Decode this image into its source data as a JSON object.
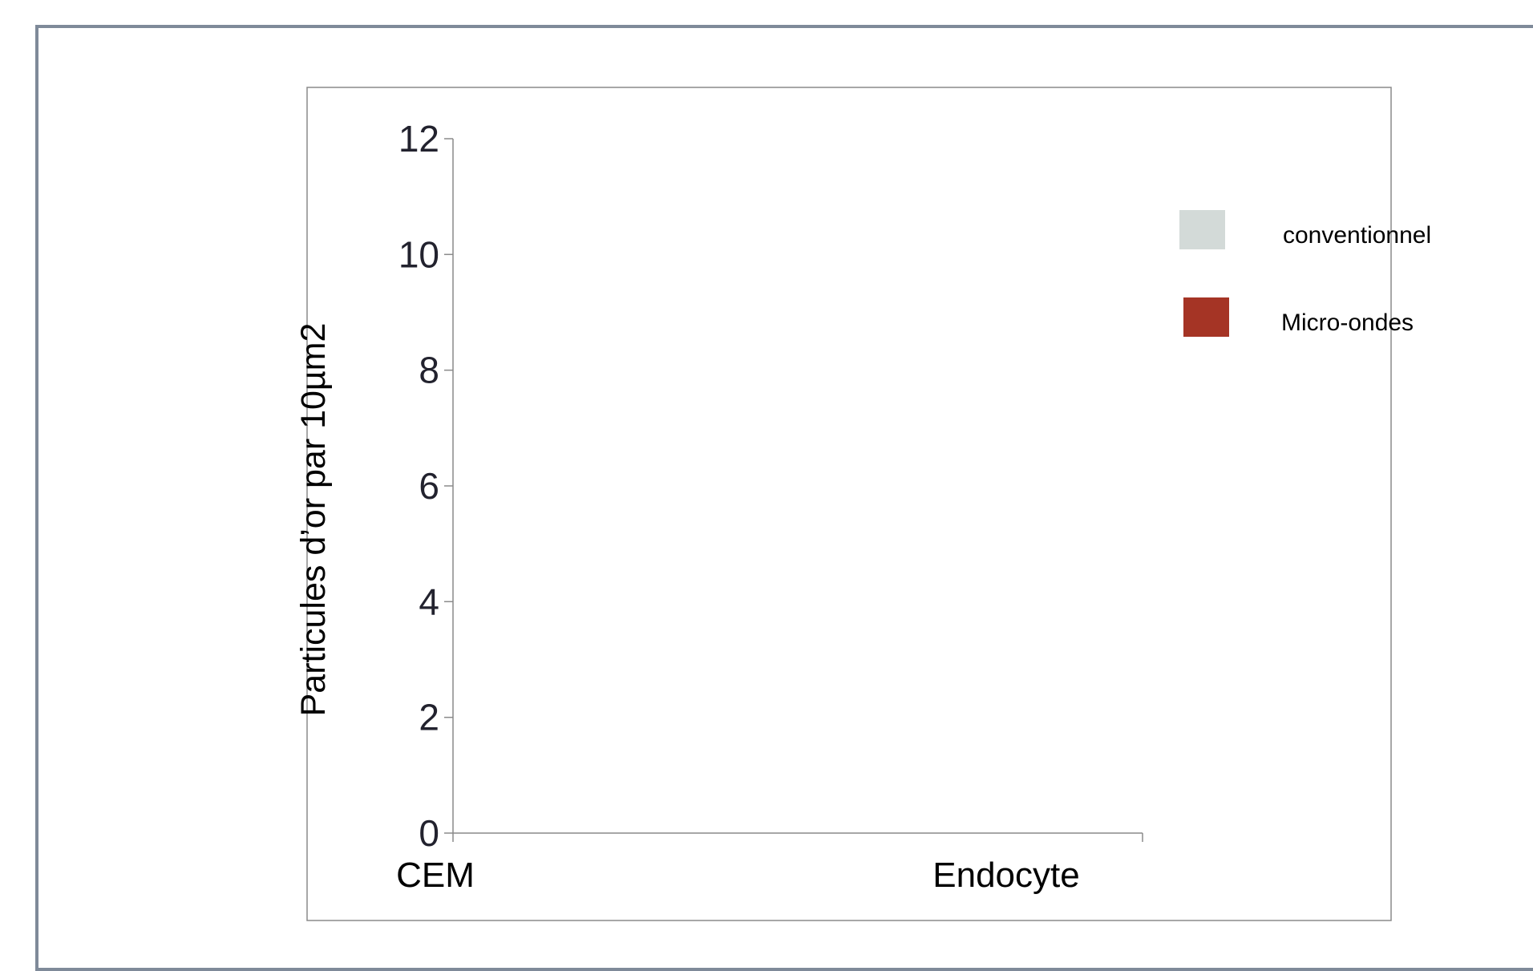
{
  "chart_data": {
    "type": "bar",
    "categories": [
      "CEM",
      "Endocyte"
    ],
    "series": [
      {
        "name": "conventionnel",
        "values": [
          null,
          null
        ],
        "color": "#d3dad8"
      },
      {
        "name": "Micro-ondes",
        "values": [
          null,
          null
        ],
        "color": "#a53425"
      }
    ],
    "title": "",
    "xlabel": "",
    "ylabel": "Particules d’or par 10µm2",
    "ylim": [
      0,
      12
    ],
    "yticks": [
      0,
      2,
      4,
      6,
      8,
      10,
      12
    ],
    "grid": false,
    "legend_position": "right"
  }
}
